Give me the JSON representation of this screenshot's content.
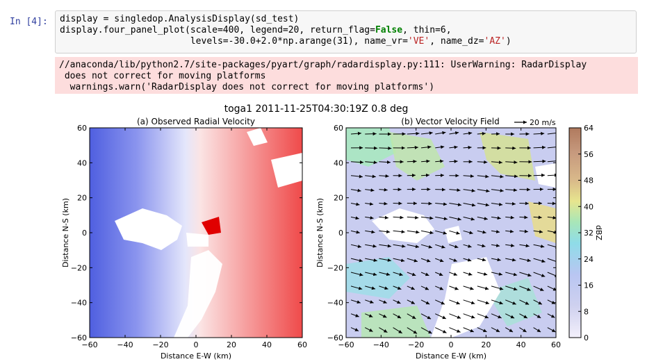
{
  "cell": {
    "prompt": "In [4]:",
    "code": [
      {
        "segments": [
          {
            "t": "display = singledop.AnalysisDisplay(sd_test)",
            "c": ""
          }
        ]
      },
      {
        "segments": [
          {
            "t": "display.four_panel_plot(scale=400, legend=20, return_flag=",
            "c": ""
          },
          {
            "t": "False",
            "c": "kw"
          },
          {
            "t": ", thin=6,",
            "c": ""
          }
        ]
      },
      {
        "segments": [
          {
            "t": "                        levels=-30.0+2.0*np.arange(31), name_vr=",
            "c": ""
          },
          {
            "t": "'VE'",
            "c": "str"
          },
          {
            "t": ", name_dz=",
            "c": ""
          },
          {
            "t": "'AZ'",
            "c": "str"
          },
          {
            "t": ")",
            "c": ""
          }
        ]
      }
    ]
  },
  "output": {
    "lines": [
      "//anaconda/lib/python2.7/site-packages/pyart/graph/radardisplay.py:111: UserWarning: RadarDisplay",
      " does not correct for moving platforms",
      "  warnings.warn('RadarDisplay does not correct for moving platforms')"
    ]
  },
  "figure": {
    "suptitle": "toga1 2011-11-25T04:30:19Z 0.8 deg",
    "legend_arrow_label": "20 m/s",
    "colorbar_label": "dBZ",
    "colorbar_ticks": [
      "0",
      "8",
      "16",
      "24",
      "32",
      "40",
      "48",
      "56",
      "64"
    ]
  },
  "chart_data": [
    {
      "type": "heatmap",
      "title": "(a) Observed Radial Velocity",
      "xlabel": "Distance E-W (km)",
      "ylabel": "Distance N-S (km)",
      "xlim": [
        -60,
        60
      ],
      "ylim": [
        -60,
        60
      ],
      "xticks": [
        -60,
        -40,
        -20,
        0,
        20,
        40,
        60
      ],
      "yticks": [
        -60,
        -40,
        -20,
        0,
        20,
        40,
        60
      ],
      "colormap": "blue-white-red"
    },
    {
      "type": "heatmap",
      "title": "(b) Vector Velocity Field",
      "xlabel": "Distance E-W (km)",
      "ylabel": "Distance N-S (km)",
      "xlim": [
        -60,
        60
      ],
      "ylim": [
        -60,
        60
      ],
      "xticks": [
        -60,
        -40,
        -20,
        0,
        20,
        40,
        60
      ],
      "yticks": [
        -60,
        -40,
        -20,
        0,
        20,
        40,
        60
      ],
      "colorbar": {
        "label": "dBZ",
        "range": [
          0,
          64
        ]
      }
    }
  ]
}
